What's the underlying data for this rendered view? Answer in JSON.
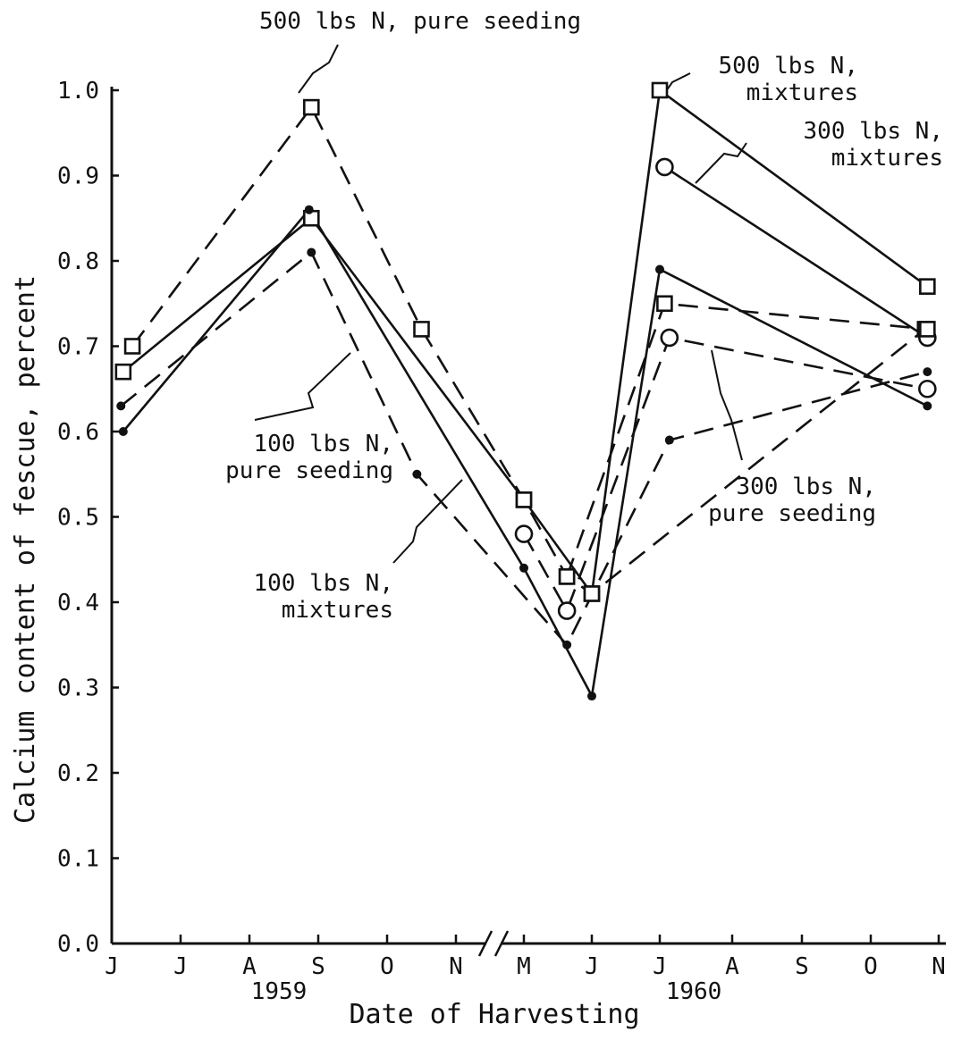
{
  "chart_data": {
    "type": "line",
    "title": "",
    "xlabel": "Date of Harvesting",
    "ylabel": "Calcium content of fescue, percent",
    "ylim": [
      0.0,
      1.0
    ],
    "yticks": [
      "0.0",
      "0.1",
      "0.2",
      "0.3",
      "0.4",
      "0.5",
      "0.6",
      "0.7",
      "0.8",
      "0.9",
      "1.0"
    ],
    "x_months": [
      "J",
      "J",
      "A",
      "S",
      "O",
      "N",
      "M",
      "J",
      "J",
      "A",
      "S",
      "O",
      "N"
    ],
    "x_years": [
      "1959",
      "1960"
    ],
    "x_axis_break": true,
    "grid": false,
    "legend": "none",
    "series": [
      {
        "name": "500 lbs N, pure seeding",
        "label_lines": [
          "500 lbs N, pure seeding"
        ],
        "line": "dashed",
        "marker": "square",
        "points": [
          {
            "date": "1959-06-10",
            "value": 0.7
          },
          {
            "date": "1959-08-28",
            "value": 0.98
          },
          {
            "date": "1959-10-16",
            "value": 0.72
          },
          {
            "date": "1960-05-01",
            "value": 0.52
          },
          {
            "date": "1960-05-20",
            "value": 0.43
          },
          {
            "date": "1960-06-01",
            "value": 0.41
          },
          {
            "date": "1960-10-25",
            "value": 0.72
          }
        ]
      },
      {
        "name": "500 lbs N, mixtures",
        "label_lines": [
          "500 lbs N,",
          "mixtures"
        ],
        "line": "solid",
        "marker": "square",
        "points": [
          {
            "date": "1959-06-06",
            "value": 0.67
          },
          {
            "date": "1959-08-28",
            "value": 0.85
          },
          {
            "date": "1960-05-01",
            "value": 0.52
          },
          {
            "date": "1960-06-01",
            "value": 0.41
          },
          {
            "date": "1960-07-01",
            "value": 1.0
          },
          {
            "date": "1960-10-26",
            "value": 0.77
          }
        ]
      },
      {
        "name": "300 lbs N, mixtures",
        "label_lines": [
          "300 lbs N,",
          "mixtures"
        ],
        "line": "solid",
        "marker": "circle",
        "points": [
          {
            "date": "1960-07-03",
            "value": 0.91
          },
          {
            "date": "1960-10-26",
            "value": 0.71
          }
        ]
      },
      {
        "name": "300 lbs N, pure seeding",
        "label_lines": [
          "300 lbs N,",
          "pure seeding"
        ],
        "line": "dashed",
        "marker": "circle",
        "points": [
          {
            "date": "1960-05-01",
            "value": 0.48
          },
          {
            "date": "1960-05-20",
            "value": 0.39
          },
          {
            "date": "1960-07-05",
            "value": 0.71
          },
          {
            "date": "1960-10-26",
            "value": 0.65
          }
        ]
      },
      {
        "name": "100 lbs N, pure seeding",
        "label_lines": [
          "100 lbs N,",
          "pure seeding"
        ],
        "line": "dashed",
        "marker": "dot",
        "points": [
          {
            "date": "1959-06-05",
            "value": 0.63
          },
          {
            "date": "1959-08-28",
            "value": 0.81
          },
          {
            "date": "1959-10-14",
            "value": 0.55
          },
          {
            "date": "1960-05-20",
            "value": 0.35
          },
          {
            "date": "1960-07-05",
            "value": 0.59
          },
          {
            "date": "1960-10-26",
            "value": 0.67
          }
        ]
      },
      {
        "name": "100 lbs N, mixtures",
        "label_lines": [
          "100 lbs N,",
          "mixtures"
        ],
        "line": "solid",
        "marker": "dot",
        "points": [
          {
            "date": "1959-06-06",
            "value": 0.6
          },
          {
            "date": "1959-08-27",
            "value": 0.86
          },
          {
            "date": "1960-05-01",
            "value": 0.44
          },
          {
            "date": "1960-06-01",
            "value": 0.29
          },
          {
            "date": "1960-07-01",
            "value": 0.79
          },
          {
            "date": "1960-10-26",
            "value": 0.63
          }
        ]
      },
      {
        "name": "",
        "label_lines": [],
        "line": "dashed",
        "marker": "square",
        "points": [
          {
            "date": "1960-05-20",
            "value": 0.43
          },
          {
            "date": "1960-07-03",
            "value": 0.75
          },
          {
            "date": "1960-10-26",
            "value": 0.72
          }
        ]
      }
    ]
  }
}
